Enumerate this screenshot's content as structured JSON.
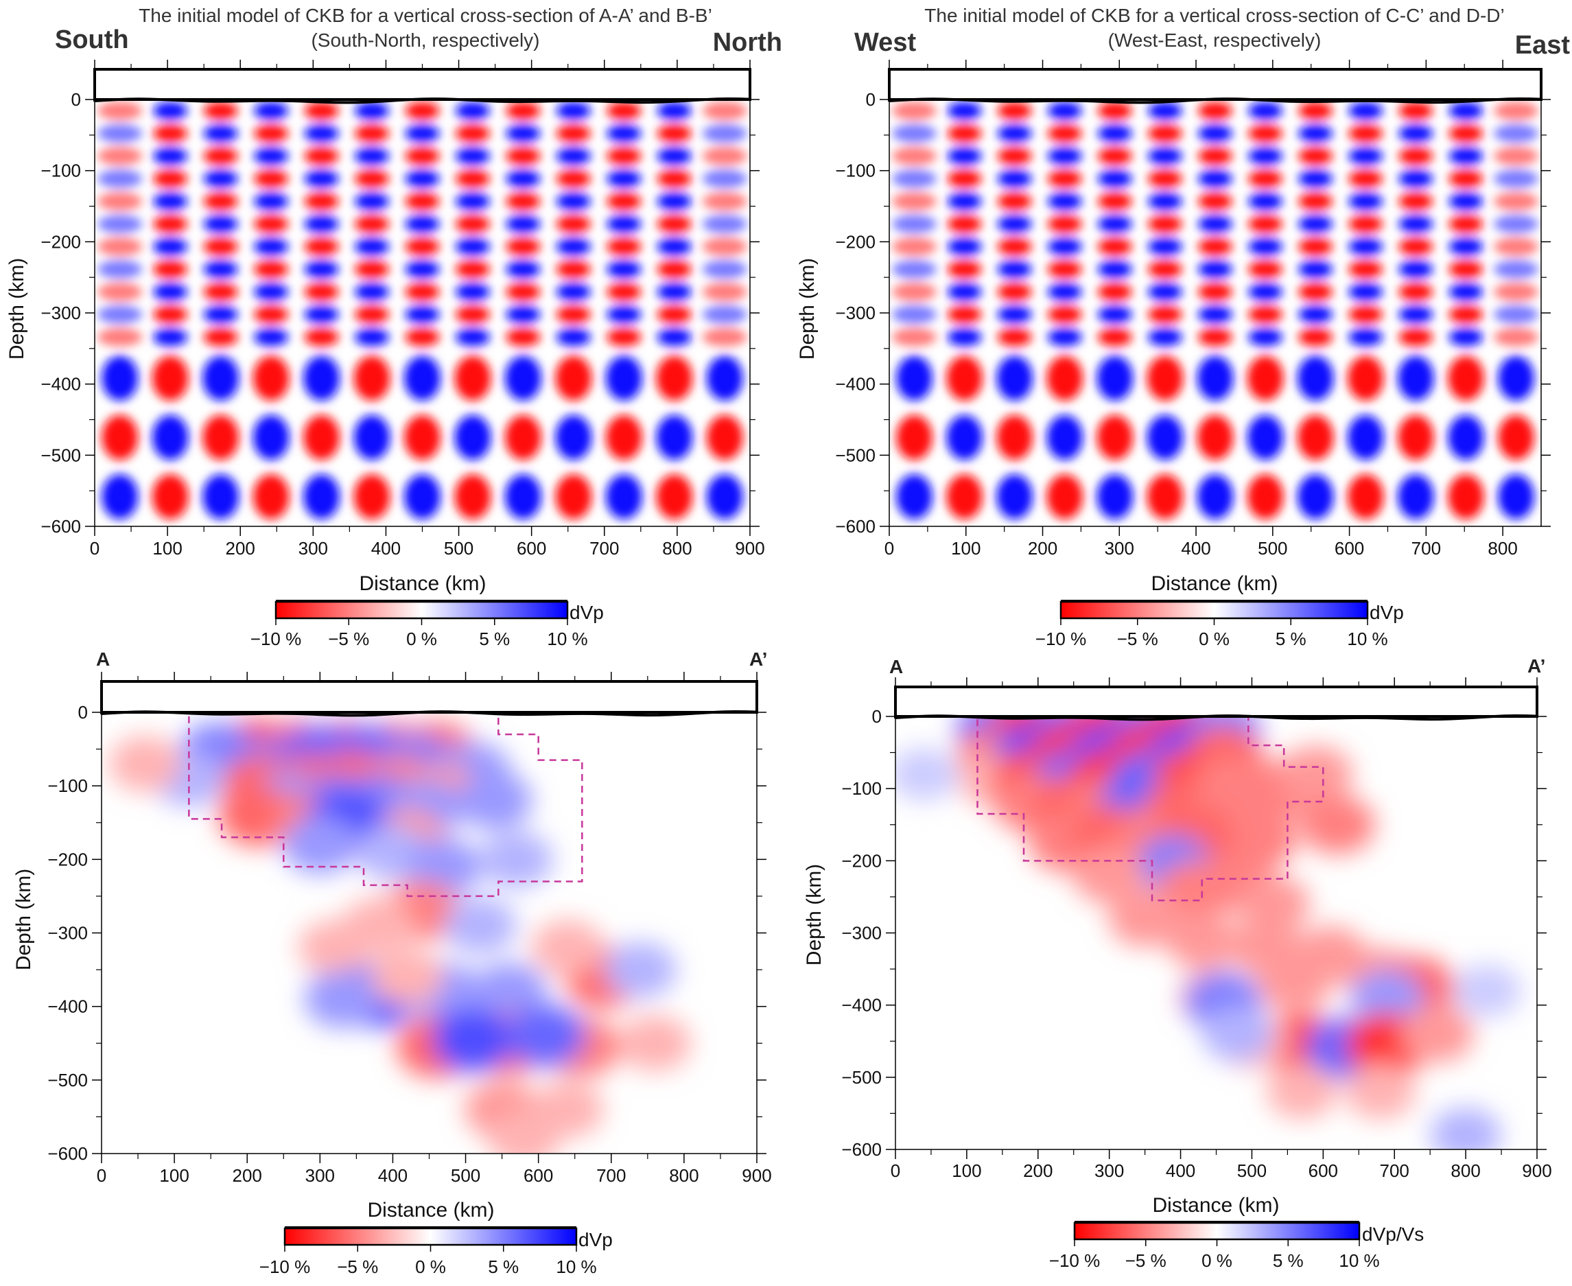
{
  "chart_data": [
    {
      "type": "heatmap",
      "panel": "top-left",
      "title_line1": "The initial model of CKB for a vertical cross-section of A-A’ and B-B’",
      "title_line2": "(South-North, respectively)",
      "left_label": "South",
      "right_label": "North",
      "xlabel": "Distance (km)",
      "ylabel": "Depth (km)",
      "xlim": [
        0,
        900
      ],
      "ylim": [
        -600,
        0
      ],
      "x_ticks": [
        0,
        100,
        200,
        300,
        400,
        500,
        600,
        700,
        800,
        900
      ],
      "y_ticks": [
        0,
        -100,
        -200,
        -300,
        -400,
        -500,
        -600
      ],
      "colorbar": {
        "label": "dVp",
        "ticks": [
          "−10 %",
          "−5 %",
          "0 %",
          "5 %",
          "10 %"
        ],
        "range": [
          -10,
          10
        ]
      },
      "pattern": "checkerboard",
      "anomaly_amplitude_percent": 10,
      "checker_columns": 13,
      "checker_rows_shallow": 11,
      "checker_rows_deep": 3,
      "deep_layer_boundary_depth": -350
    },
    {
      "type": "heatmap",
      "panel": "top-right",
      "title_line1": "The initial model of CKB for a vertical cross-section of C-C’ and D-D’",
      "title_line2": "(West-East, respectively)",
      "left_label": "West",
      "right_label": "East",
      "xlabel": "Distance (km)",
      "ylabel": "Depth (km)",
      "xlim": [
        0,
        850
      ],
      "ylim": [
        -600,
        0
      ],
      "x_ticks": [
        0,
        100,
        200,
        300,
        400,
        500,
        600,
        700,
        800
      ],
      "y_ticks": [
        0,
        -100,
        -200,
        -300,
        -400,
        -500,
        -600
      ],
      "colorbar": {
        "label": "dVp",
        "ticks": [
          "−10 %",
          "−5 %",
          "0 %",
          "5 %",
          "10 %"
        ],
        "range": [
          -10,
          10
        ]
      },
      "pattern": "checkerboard",
      "anomaly_amplitude_percent": 10,
      "checker_columns": 13,
      "checker_rows_shallow": 11,
      "checker_rows_deep": 3,
      "deep_layer_boundary_depth": -350
    },
    {
      "type": "heatmap",
      "panel": "bottom-left",
      "left_label": "A",
      "right_label": "A’",
      "xlabel": "Distance (km)",
      "ylabel": "Depth (km)",
      "xlim": [
        0,
        900
      ],
      "ylim": [
        -600,
        0
      ],
      "x_ticks": [
        0,
        100,
        200,
        300,
        400,
        500,
        600,
        700,
        800,
        900
      ],
      "y_ticks": [
        0,
        -100,
        -200,
        -300,
        -400,
        -500,
        -600
      ],
      "colorbar": {
        "label": "dVp",
        "ticks": [
          "−10 %",
          "−5 %",
          "0 %",
          "5 %",
          "10 %"
        ],
        "range": [
          -10,
          10
        ]
      },
      "pattern": "recovered checkerboard",
      "dashed_outline_distance_depth": [
        [
          120,
          0
        ],
        [
          545,
          0
        ],
        [
          545,
          -30
        ],
        [
          600,
          -30
        ],
        [
          600,
          -65
        ],
        [
          660,
          -65
        ],
        [
          660,
          -230
        ],
        [
          545,
          -230
        ],
        [
          545,
          -250
        ],
        [
          420,
          -250
        ],
        [
          420,
          -235
        ],
        [
          360,
          -235
        ],
        [
          360,
          -210
        ],
        [
          250,
          -210
        ],
        [
          250,
          -170
        ],
        [
          165,
          -170
        ],
        [
          165,
          -145
        ],
        [
          120,
          -145
        ],
        [
          120,
          0
        ]
      ],
      "blobs": [
        {
          "x": 210,
          "d": -55,
          "v": -8
        },
        {
          "x": 270,
          "d": -55,
          "v": -7
        },
        {
          "x": 335,
          "d": -55,
          "v": -7
        },
        {
          "x": 400,
          "d": -55,
          "v": -6
        },
        {
          "x": 460,
          "d": -55,
          "v": -6
        },
        {
          "x": 160,
          "d": -55,
          "v": 5
        },
        {
          "x": 240,
          "d": -75,
          "v": 5
        },
        {
          "x": 300,
          "d": -60,
          "v": 6
        },
        {
          "x": 365,
          "d": -60,
          "v": 6
        },
        {
          "x": 430,
          "d": -70,
          "v": 5
        },
        {
          "x": 510,
          "d": -80,
          "v": 4
        },
        {
          "x": 220,
          "d": -100,
          "v": -6
        },
        {
          "x": 285,
          "d": -100,
          "v": -6
        },
        {
          "x": 345,
          "d": -95,
          "v": -6
        },
        {
          "x": 410,
          "d": -100,
          "v": -5
        },
        {
          "x": 470,
          "d": -110,
          "v": -4
        },
        {
          "x": 255,
          "d": -120,
          "v": 4
        },
        {
          "x": 320,
          "d": -125,
          "v": 5
        },
        {
          "x": 380,
          "d": -125,
          "v": 5
        },
        {
          "x": 445,
          "d": -130,
          "v": 4
        },
        {
          "x": 540,
          "d": -120,
          "v": 4
        },
        {
          "x": 215,
          "d": -140,
          "v": -6
        },
        {
          "x": 285,
          "d": -150,
          "v": -5
        },
        {
          "x": 350,
          "d": -160,
          "v": -4
        },
        {
          "x": 420,
          "d": -170,
          "v": -4
        },
        {
          "x": 335,
          "d": -150,
          "v": 7
        },
        {
          "x": 300,
          "d": -180,
          "v": 4
        },
        {
          "x": 400,
          "d": -190,
          "v": 3
        },
        {
          "x": 470,
          "d": -210,
          "v": 4
        },
        {
          "x": 570,
          "d": -200,
          "v": 3
        },
        {
          "x": 440,
          "d": -270,
          "v": -5
        },
        {
          "x": 380,
          "d": -290,
          "v": -3
        },
        {
          "x": 520,
          "d": -290,
          "v": 3
        },
        {
          "x": 320,
          "d": -320,
          "v": -3
        },
        {
          "x": 380,
          "d": -385,
          "v": 7
        },
        {
          "x": 330,
          "d": -390,
          "v": 4
        },
        {
          "x": 470,
          "d": -380,
          "v": 4
        },
        {
          "x": 560,
          "d": -380,
          "v": 4
        },
        {
          "x": 420,
          "d": -360,
          "v": -3
        },
        {
          "x": 690,
          "d": -360,
          "v": -6
        },
        {
          "x": 640,
          "d": -320,
          "v": -3
        },
        {
          "x": 740,
          "d": -350,
          "v": 3
        },
        {
          "x": 460,
          "d": -455,
          "v": -6
        },
        {
          "x": 560,
          "d": -450,
          "v": -6
        },
        {
          "x": 660,
          "d": -455,
          "v": -5
        },
        {
          "x": 510,
          "d": -445,
          "v": 7
        },
        {
          "x": 610,
          "d": -440,
          "v": 6
        },
        {
          "x": 760,
          "d": -450,
          "v": -3
        },
        {
          "x": 550,
          "d": -540,
          "v": -4
        },
        {
          "x": 640,
          "d": -540,
          "v": -3
        },
        {
          "x": 580,
          "d": -580,
          "v": -3
        },
        {
          "x": 120,
          "d": -90,
          "v": 3
        },
        {
          "x": 60,
          "d": -70,
          "v": -3
        }
      ]
    },
    {
      "type": "heatmap",
      "panel": "bottom-right",
      "left_label": "A",
      "right_label": "A’",
      "xlabel": "Distance (km)",
      "ylabel": "Depth (km)",
      "xlim": [
        0,
        900
      ],
      "ylim": [
        -600,
        0
      ],
      "x_ticks": [
        0,
        100,
        200,
        300,
        400,
        500,
        600,
        700,
        800,
        900
      ],
      "y_ticks": [
        0,
        -100,
        -200,
        -300,
        -400,
        -500,
        -600
      ],
      "colorbar": {
        "label": "dVp/Vs",
        "ticks": [
          "−10 %",
          "−5 %",
          "0 %",
          "5 %",
          "10 %"
        ],
        "range": [
          -10,
          10
        ]
      },
      "pattern": "recovered checkerboard",
      "dashed_outline_distance_depth": [
        [
          115,
          0
        ],
        [
          495,
          0
        ],
        [
          495,
          -40
        ],
        [
          545,
          -40
        ],
        [
          545,
          -70
        ],
        [
          600,
          -70
        ],
        [
          600,
          -118
        ],
        [
          550,
          -118
        ],
        [
          550,
          -225
        ],
        [
          430,
          -225
        ],
        [
          430,
          -255
        ],
        [
          360,
          -255
        ],
        [
          360,
          -200
        ],
        [
          180,
          -200
        ],
        [
          180,
          -135
        ],
        [
          115,
          -135
        ],
        [
          115,
          0
        ]
      ],
      "blobs": [
        {
          "x": 140,
          "d": -20,
          "v": 6
        },
        {
          "x": 190,
          "d": -20,
          "v": -8
        },
        {
          "x": 245,
          "d": -20,
          "v": 6
        },
        {
          "x": 300,
          "d": -20,
          "v": -8
        },
        {
          "x": 355,
          "d": -20,
          "v": 6
        },
        {
          "x": 410,
          "d": -20,
          "v": -8
        },
        {
          "x": 460,
          "d": -20,
          "v": 5
        },
        {
          "x": 140,
          "d": -55,
          "v": -5
        },
        {
          "x": 190,
          "d": -55,
          "v": 7
        },
        {
          "x": 245,
          "d": -55,
          "v": -8
        },
        {
          "x": 300,
          "d": -55,
          "v": 7
        },
        {
          "x": 355,
          "d": -55,
          "v": -8
        },
        {
          "x": 410,
          "d": -55,
          "v": 7
        },
        {
          "x": 460,
          "d": -55,
          "v": -6
        },
        {
          "x": 140,
          "d": -90,
          "v": -3
        },
        {
          "x": 190,
          "d": -90,
          "v": -7
        },
        {
          "x": 245,
          "d": -90,
          "v": 6
        },
        {
          "x": 300,
          "d": -90,
          "v": -8
        },
        {
          "x": 355,
          "d": -90,
          "v": 6
        },
        {
          "x": 410,
          "d": -90,
          "v": -7
        },
        {
          "x": 470,
          "d": -95,
          "v": -5
        },
        {
          "x": 190,
          "d": -120,
          "v": -5
        },
        {
          "x": 245,
          "d": -125,
          "v": -6
        },
        {
          "x": 300,
          "d": -125,
          "v": -5
        },
        {
          "x": 340,
          "d": -120,
          "v": 6
        },
        {
          "x": 400,
          "d": -130,
          "v": -6
        },
        {
          "x": 460,
          "d": -135,
          "v": -5
        },
        {
          "x": 540,
          "d": -100,
          "v": -5
        },
        {
          "x": 590,
          "d": -80,
          "v": -4
        },
        {
          "x": 620,
          "d": -150,
          "v": -5
        },
        {
          "x": 510,
          "d": -170,
          "v": -5
        },
        {
          "x": 240,
          "d": -175,
          "v": -5
        },
        {
          "x": 300,
          "d": -165,
          "v": -6
        },
        {
          "x": 360,
          "d": -170,
          "v": -5
        },
        {
          "x": 420,
          "d": -165,
          "v": -6
        },
        {
          "x": 390,
          "d": -205,
          "v": 5
        },
        {
          "x": 300,
          "d": -220,
          "v": -4
        },
        {
          "x": 420,
          "d": -240,
          "v": -5
        },
        {
          "x": 480,
          "d": -230,
          "v": -5
        },
        {
          "x": 530,
          "d": -260,
          "v": -4
        },
        {
          "x": 350,
          "d": -280,
          "v": -4
        },
        {
          "x": 430,
          "d": -310,
          "v": -4
        },
        {
          "x": 520,
          "d": -320,
          "v": -4
        },
        {
          "x": 610,
          "d": -330,
          "v": -4
        },
        {
          "x": 450,
          "d": -390,
          "v": -4
        },
        {
          "x": 560,
          "d": -370,
          "v": -4
        },
        {
          "x": 680,
          "d": -360,
          "v": -4
        },
        {
          "x": 730,
          "d": -375,
          "v": -6
        },
        {
          "x": 690,
          "d": -390,
          "v": 4
        },
        {
          "x": 460,
          "d": -395,
          "v": 5
        },
        {
          "x": 570,
          "d": -455,
          "v": -7
        },
        {
          "x": 630,
          "d": -460,
          "v": 6
        },
        {
          "x": 690,
          "d": -455,
          "v": -8
        },
        {
          "x": 500,
          "d": -450,
          "v": -3
        },
        {
          "x": 760,
          "d": -440,
          "v": -4
        },
        {
          "x": 480,
          "d": -440,
          "v": 3
        },
        {
          "x": 570,
          "d": -520,
          "v": -3
        },
        {
          "x": 680,
          "d": -520,
          "v": -3
        },
        {
          "x": 800,
          "d": -580,
          "v": 3
        },
        {
          "x": 40,
          "d": -80,
          "v": 2
        },
        {
          "x": 830,
          "d": -380,
          "v": 2
        }
      ]
    }
  ]
}
